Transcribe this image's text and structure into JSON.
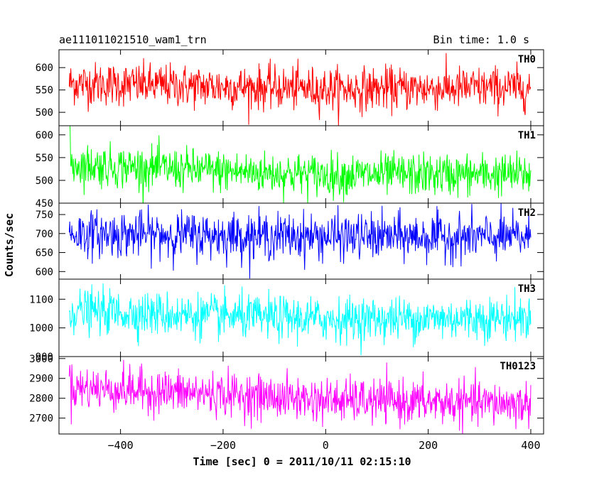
{
  "header": {
    "file_label": "ae111011021510_wam1_trn",
    "bin_time_label": "Bin time: 1.0 s"
  },
  "chart_data": {
    "type": "line",
    "title": "ae111011021510_wam1_trn",
    "subtitle": "Bin time: 1.0 s",
    "xlabel": "Time [sec] 0 = 2011/10/11 02:15:10",
    "ylabel": "Counts/sec",
    "xlim": [
      -520,
      425
    ],
    "x_range": [
      -500,
      400
    ],
    "x_ticks": [
      -400,
      -200,
      0,
      200,
      400
    ],
    "x_tick_labels": [
      "−400",
      "−200",
      "0",
      "200",
      "400"
    ],
    "legend": "per-panel label top-right",
    "panels": [
      {
        "name": "TH0",
        "color": "#ff0000",
        "ylim": [
          470,
          640
        ],
        "y_ticks": [
          500,
          550,
          600
        ],
        "trend": [
          {
            "x": -500,
            "y": 565
          },
          {
            "x": 0,
            "y": 552
          },
          {
            "x": 400,
            "y": 555
          }
        ],
        "noise_sd": 24,
        "start_spike": 0
      },
      {
        "name": "TH1",
        "color": "#00ff00",
        "ylim": [
          450,
          620
        ],
        "y_ticks": [
          450,
          500,
          550,
          600
        ],
        "trend": [
          {
            "x": -500,
            "y": 535
          },
          {
            "x": -200,
            "y": 520
          },
          {
            "x": 0,
            "y": 512
          },
          {
            "x": 400,
            "y": 513
          }
        ],
        "noise_sd": 23,
        "start_spike": 85
      },
      {
        "name": "TH2",
        "color": "#0000ff",
        "ylim": [
          580,
          780
        ],
        "y_ticks": [
          600,
          650,
          700,
          750
        ],
        "trend": [
          {
            "x": -500,
            "y": 700
          },
          {
            "x": 0,
            "y": 692
          },
          {
            "x": 400,
            "y": 690
          }
        ],
        "noise_sd": 30,
        "start_spike": 0
      },
      {
        "name": "TH3",
        "color": "#00ffff",
        "ylim": [
          900,
          1170
        ],
        "y_ticks": [
          900,
          1000,
          1100
        ],
        "trend": [
          {
            "x": -500,
            "y": 1060
          },
          {
            "x": -200,
            "y": 1040
          },
          {
            "x": 0,
            "y": 1030
          },
          {
            "x": 400,
            "y": 1035
          }
        ],
        "noise_sd": 38,
        "start_spike": 0
      },
      {
        "name": "TH0123",
        "color": "#ff00ff",
        "ylim": [
          2620,
          3010
        ],
        "y_ticks": [
          2700,
          2800,
          2900,
          3000
        ],
        "trend": [
          {
            "x": -500,
            "y": 2855
          },
          {
            "x": -200,
            "y": 2820
          },
          {
            "x": 0,
            "y": 2790
          },
          {
            "x": 400,
            "y": 2770
          }
        ],
        "noise_sd": 55,
        "start_spike": 90
      }
    ]
  }
}
